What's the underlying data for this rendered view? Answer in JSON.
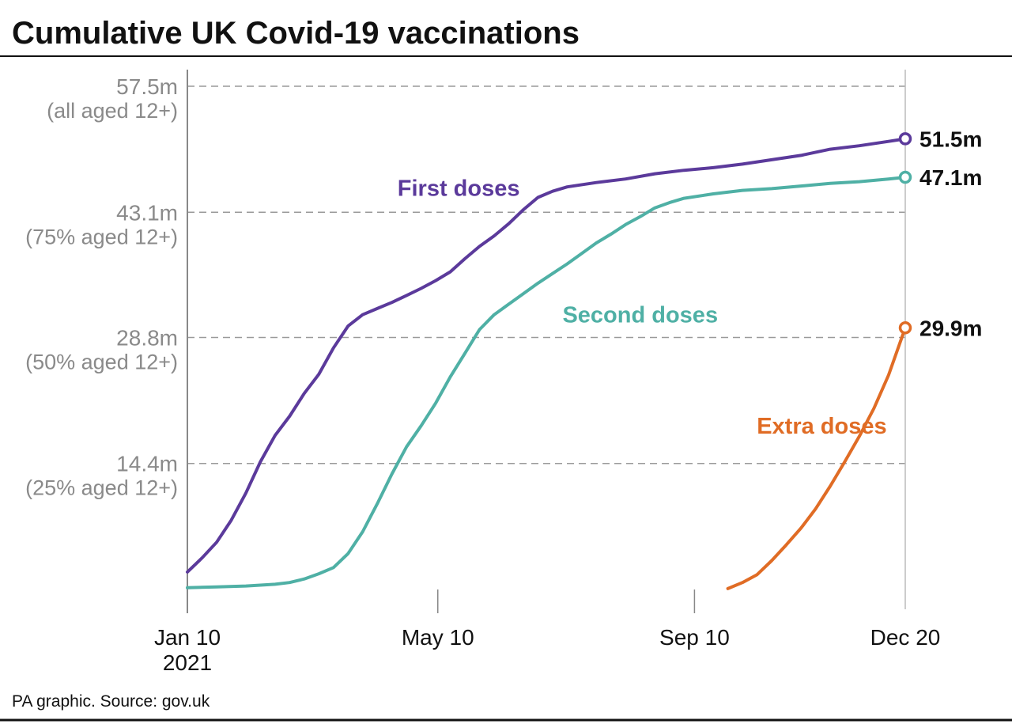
{
  "title": "Cumulative UK Covid-19 vaccinations",
  "source": "PA graphic. Source: gov.uk",
  "colors": {
    "first": "#5b3a9b",
    "second": "#4fb0a5",
    "extra": "#e06c25",
    "grid": "#9a9a9a",
    "axis": "#888888",
    "rule": "#111111"
  },
  "chart_data": {
    "type": "line",
    "title": "Cumulative UK Covid-19 vaccinations",
    "xlabel": "",
    "ylabel": "",
    "ylim": [
      0,
      57.5
    ],
    "grid": true,
    "y_ticks": [
      {
        "value": 57.5,
        "label": "57.5m",
        "sub": "(all aged 12+)"
      },
      {
        "value": 43.1,
        "label": "43.1m",
        "sub": "(75% aged 12+)"
      },
      {
        "value": 28.8,
        "label": "28.8m",
        "sub": "(50% aged 12+)"
      },
      {
        "value": 14.4,
        "label": "14.4m",
        "sub": "(25% aged 12+)"
      }
    ],
    "x_ticks": [
      {
        "date": "2021-01-10",
        "label": "Jan 10",
        "sub": "2021"
      },
      {
        "date": "2021-05-10",
        "label": "May 10",
        "sub": ""
      },
      {
        "date": "2021-09-10",
        "label": "Sep 10",
        "sub": ""
      },
      {
        "date": "2021-12-20",
        "label": "Dec 20",
        "sub": ""
      }
    ],
    "series": [
      {
        "key": "first",
        "name": "First doses",
        "end_label": "51.5m",
        "points": [
          [
            "2021-01-10",
            2.0
          ],
          [
            "2021-01-17",
            3.6
          ],
          [
            "2021-01-24",
            5.4
          ],
          [
            "2021-01-31",
            7.9
          ],
          [
            "2021-02-07",
            11.0
          ],
          [
            "2021-02-14",
            14.6
          ],
          [
            "2021-02-21",
            17.6
          ],
          [
            "2021-02-28",
            19.8
          ],
          [
            "2021-03-07",
            22.4
          ],
          [
            "2021-03-14",
            24.6
          ],
          [
            "2021-03-21",
            27.6
          ],
          [
            "2021-03-28",
            30.1
          ],
          [
            "2021-04-04",
            31.4
          ],
          [
            "2021-04-11",
            32.1
          ],
          [
            "2021-04-18",
            32.8
          ],
          [
            "2021-04-25",
            33.6
          ],
          [
            "2021-05-02",
            34.4
          ],
          [
            "2021-05-09",
            35.3
          ],
          [
            "2021-05-16",
            36.3
          ],
          [
            "2021-05-23",
            37.8
          ],
          [
            "2021-05-30",
            39.2
          ],
          [
            "2021-06-06",
            40.4
          ],
          [
            "2021-06-13",
            41.8
          ],
          [
            "2021-06-20",
            43.4
          ],
          [
            "2021-06-27",
            44.8
          ],
          [
            "2021-07-04",
            45.5
          ],
          [
            "2021-07-11",
            46.0
          ],
          [
            "2021-07-25",
            46.5
          ],
          [
            "2021-08-08",
            46.9
          ],
          [
            "2021-08-22",
            47.5
          ],
          [
            "2021-09-05",
            47.9
          ],
          [
            "2021-09-19",
            48.2
          ],
          [
            "2021-10-03",
            48.6
          ],
          [
            "2021-10-17",
            49.1
          ],
          [
            "2021-10-31",
            49.6
          ],
          [
            "2021-11-14",
            50.3
          ],
          [
            "2021-11-28",
            50.7
          ],
          [
            "2021-12-12",
            51.2
          ],
          [
            "2021-12-20",
            51.5
          ]
        ]
      },
      {
        "key": "second",
        "name": "Second doses",
        "end_label": "47.1m",
        "points": [
          [
            "2021-01-10",
            0.2
          ],
          [
            "2021-01-24",
            0.3
          ],
          [
            "2021-02-07",
            0.4
          ],
          [
            "2021-02-21",
            0.6
          ],
          [
            "2021-02-28",
            0.8
          ],
          [
            "2021-03-07",
            1.2
          ],
          [
            "2021-03-14",
            1.8
          ],
          [
            "2021-03-21",
            2.5
          ],
          [
            "2021-03-28",
            4.1
          ],
          [
            "2021-04-04",
            6.6
          ],
          [
            "2021-04-11",
            9.8
          ],
          [
            "2021-04-18",
            13.2
          ],
          [
            "2021-04-25",
            16.3
          ],
          [
            "2021-05-02",
            18.7
          ],
          [
            "2021-05-09",
            21.3
          ],
          [
            "2021-05-16",
            24.3
          ],
          [
            "2021-05-23",
            27.0
          ],
          [
            "2021-05-30",
            29.7
          ],
          [
            "2021-06-06",
            31.4
          ],
          [
            "2021-06-13",
            32.6
          ],
          [
            "2021-06-20",
            33.8
          ],
          [
            "2021-06-27",
            35.0
          ],
          [
            "2021-07-04",
            36.1
          ],
          [
            "2021-07-11",
            37.2
          ],
          [
            "2021-07-18",
            38.4
          ],
          [
            "2021-07-25",
            39.6
          ],
          [
            "2021-08-01",
            40.6
          ],
          [
            "2021-08-08",
            41.7
          ],
          [
            "2021-08-15",
            42.6
          ],
          [
            "2021-08-22",
            43.6
          ],
          [
            "2021-08-29",
            44.2
          ],
          [
            "2021-09-05",
            44.7
          ],
          [
            "2021-09-19",
            45.2
          ],
          [
            "2021-10-03",
            45.6
          ],
          [
            "2021-10-17",
            45.8
          ],
          [
            "2021-10-31",
            46.1
          ],
          [
            "2021-11-14",
            46.4
          ],
          [
            "2021-11-28",
            46.6
          ],
          [
            "2021-12-12",
            46.9
          ],
          [
            "2021-12-20",
            47.1
          ]
        ]
      },
      {
        "key": "extra",
        "name": "Extra doses",
        "end_label": "29.9m",
        "points": [
          [
            "2021-09-26",
            0.1
          ],
          [
            "2021-10-03",
            0.8
          ],
          [
            "2021-10-10",
            1.7
          ],
          [
            "2021-10-17",
            3.3
          ],
          [
            "2021-10-24",
            5.1
          ],
          [
            "2021-10-31",
            7.0
          ],
          [
            "2021-11-07",
            9.2
          ],
          [
            "2021-11-14",
            11.8
          ],
          [
            "2021-11-21",
            14.6
          ],
          [
            "2021-11-28",
            17.5
          ],
          [
            "2021-12-05",
            20.7
          ],
          [
            "2021-12-12",
            24.5
          ],
          [
            "2021-12-20",
            29.9
          ]
        ]
      }
    ],
    "series_labels": [
      {
        "key": "first",
        "text": "First doses",
        "at": [
          "2021-05-20",
          45.0
        ]
      },
      {
        "key": "second",
        "text": "Second doses",
        "at": [
          "2021-08-15",
          30.5
        ]
      },
      {
        "key": "extra",
        "text": "Extra doses",
        "at": [
          "2021-11-10",
          17.8
        ]
      }
    ]
  }
}
